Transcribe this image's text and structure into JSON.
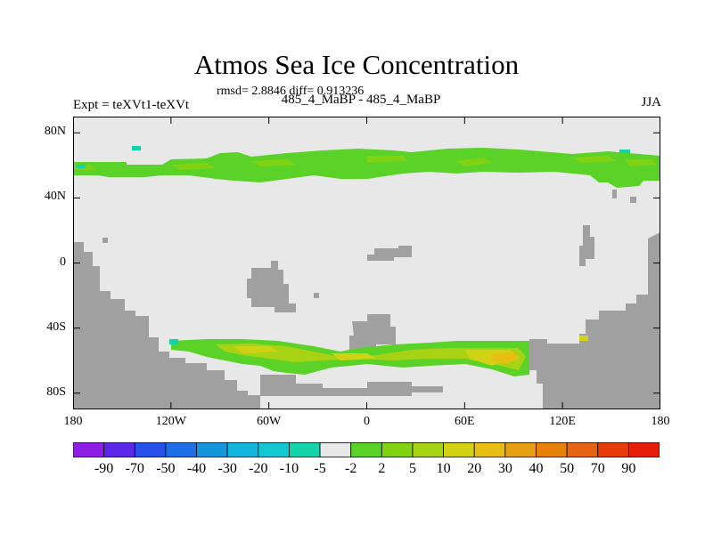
{
  "title": "Atmos Sea Ice Concentration",
  "rmsd_text": "rmsd= 2.8846 diff= 0.913236",
  "left_label": "Expt = teXVt1-teXVt",
  "center_label": "485_4_MaBP - 485_4_MaBP",
  "right_label": "JJA",
  "chart_data": {
    "type": "heatmap",
    "title": "Atmos Sea Ice Concentration",
    "subtitle": "485_4_MaBP - 485_4_MaBP",
    "xlim": [
      -180,
      180
    ],
    "ylim": [
      -90,
      90
    ],
    "x_tick_labels": [
      "180",
      "120W",
      "60W",
      "0",
      "60E",
      "120E",
      "180"
    ],
    "x_tick_values": [
      -180,
      -120,
      -60,
      0,
      60,
      120,
      180
    ],
    "y_tick_labels": [
      "80N",
      "40N",
      "0",
      "40S",
      "80S"
    ],
    "y_tick_values": [
      80,
      40,
      0,
      -40,
      -80
    ],
    "colorbar": {
      "labels": [
        "-90",
        "-70",
        "-50",
        "-40",
        "-30",
        "-20",
        "-10",
        "-5",
        "-2",
        "2",
        "5",
        "10",
        "20",
        "30",
        "40",
        "50",
        "70",
        "90"
      ],
      "colors": [
        "#8c1ee6",
        "#5a28e6",
        "#2850e6",
        "#1e6ee6",
        "#1496dc",
        "#14b4dc",
        "#14c8d2",
        "#14d2aa",
        "#e8e8e8",
        "#5ad228",
        "#82d214",
        "#a8d214",
        "#d2d214",
        "#e6be14",
        "#e6a014",
        "#e6820a",
        "#e66414",
        "#e63c0a",
        "#e61e0a"
      ]
    },
    "features": [
      {
        "name": "northern band",
        "lat_range": [
          50,
          68
        ],
        "lon_range": [
          -180,
          180
        ],
        "value_range": "2 to 10"
      },
      {
        "name": "southern band",
        "lat_range": [
          -70,
          -48
        ],
        "lon_range": [
          -115,
          100
        ],
        "value_range": "2 to 30"
      },
      {
        "name": "land mask",
        "color": "#a0a0a0"
      }
    ]
  }
}
